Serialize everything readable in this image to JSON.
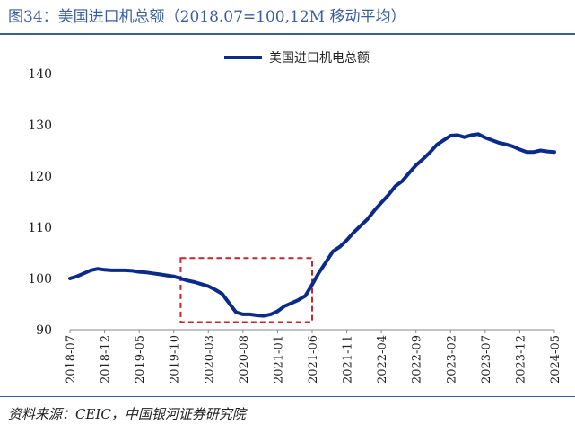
{
  "title": "图34：美国进口机总额（2018.07=100,12M 移动平均）",
  "source": "资料来源：CEIC，中国银河证券研究院",
  "chart_data": {
    "type": "line",
    "series": [
      {
        "name": "美国进口机电总额",
        "color": "#0b2a8a",
        "x": [
          "2018-07",
          "2018-08",
          "2018-09",
          "2018-10",
          "2018-11",
          "2018-12",
          "2019-01",
          "2019-02",
          "2019-03",
          "2019-04",
          "2019-05",
          "2019-06",
          "2019-07",
          "2019-08",
          "2019-09",
          "2019-10",
          "2019-11",
          "2019-12",
          "2020-01",
          "2020-02",
          "2020-03",
          "2020-04",
          "2020-05",
          "2020-06",
          "2020-07",
          "2020-08",
          "2020-09",
          "2020-10",
          "2020-11",
          "2020-12",
          "2021-01",
          "2021-02",
          "2021-03",
          "2021-04",
          "2021-05",
          "2021-06",
          "2021-07",
          "2021-08",
          "2021-09",
          "2021-10",
          "2021-11",
          "2021-12",
          "2022-01",
          "2022-02",
          "2022-03",
          "2022-04",
          "2022-05",
          "2022-06",
          "2022-07",
          "2022-08",
          "2022-09",
          "2022-10",
          "2022-11",
          "2022-12",
          "2023-01",
          "2023-02",
          "2023-03",
          "2023-04",
          "2023-05",
          "2023-06",
          "2023-07",
          "2023-08",
          "2023-09",
          "2023-10",
          "2023-11",
          "2023-12",
          "2024-01",
          "2024-02",
          "2024-03",
          "2024-04",
          "2024-05"
        ],
        "values": [
          100.0,
          100.4,
          101.0,
          101.6,
          101.9,
          101.7,
          101.6,
          101.6,
          101.6,
          101.5,
          101.3,
          101.2,
          101.0,
          100.8,
          100.6,
          100.4,
          100.0,
          99.6,
          99.3,
          98.9,
          98.5,
          97.8,
          97.0,
          95.2,
          93.4,
          93.0,
          93.0,
          92.8,
          92.7,
          93.0,
          93.6,
          94.6,
          95.2,
          95.8,
          96.6,
          98.8,
          101.2,
          103.2,
          105.3,
          106.2,
          107.5,
          109.0,
          110.3,
          111.6,
          113.3,
          114.8,
          116.3,
          118.0,
          119.0,
          120.6,
          122.1,
          123.3,
          124.6,
          126.1,
          127.0,
          127.9,
          128.0,
          127.6,
          128.0,
          128.2,
          127.5,
          127.0,
          126.5,
          126.2,
          125.8,
          125.2,
          124.7,
          124.7,
          125.0,
          124.8,
          124.7
        ]
      }
    ],
    "x_tick_labels": [
      "2018-07",
      "2018-12",
      "2019-05",
      "2019-10",
      "2020-03",
      "2020-08",
      "2021-01",
      "2021-06",
      "2021-11",
      "2022-04",
      "2022-09",
      "2023-02",
      "2023-07",
      "2023-12",
      "2024-05"
    ],
    "ylim": [
      90,
      140
    ],
    "y_ticks": [
      "90",
      "100",
      "110",
      "120",
      "130",
      "140"
    ],
    "grid": false,
    "legend": "top-center",
    "annotation": {
      "type": "dashed-box",
      "color": "#c0282d",
      "x_start": "2019-11",
      "x_end": "2021-06",
      "y_min": 91.5,
      "y_max": 104
    }
  }
}
